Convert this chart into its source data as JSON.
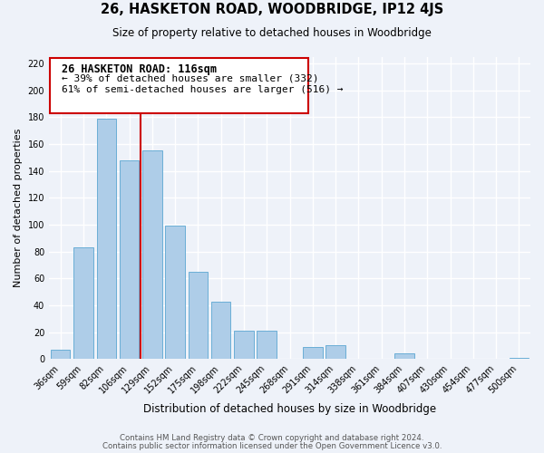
{
  "title": "26, HASKETON ROAD, WOODBRIDGE, IP12 4JS",
  "subtitle": "Size of property relative to detached houses in Woodbridge",
  "xlabel": "Distribution of detached houses by size in Woodbridge",
  "ylabel": "Number of detached properties",
  "bar_labels": [
    "36sqm",
    "59sqm",
    "82sqm",
    "106sqm",
    "129sqm",
    "152sqm",
    "175sqm",
    "198sqm",
    "222sqm",
    "245sqm",
    "268sqm",
    "291sqm",
    "314sqm",
    "338sqm",
    "361sqm",
    "384sqm",
    "407sqm",
    "430sqm",
    "454sqm",
    "477sqm",
    "500sqm"
  ],
  "bar_values": [
    7,
    83,
    179,
    148,
    155,
    99,
    65,
    43,
    21,
    21,
    0,
    9,
    10,
    0,
    0,
    4,
    0,
    0,
    0,
    0,
    1
  ],
  "bar_color": "#aecde8",
  "bar_edge_color": "#6aaed6",
  "vline_x": 3.5,
  "vline_color": "#cc0000",
  "annotation_title": "26 HASKETON ROAD: 116sqm",
  "annotation_line1": "← 39% of detached houses are smaller (332)",
  "annotation_line2": "61% of semi-detached houses are larger (516) →",
  "box_color": "#ffffff",
  "box_edge_color": "#cc0000",
  "ylim": [
    0,
    225
  ],
  "yticks": [
    0,
    20,
    40,
    60,
    80,
    100,
    120,
    140,
    160,
    180,
    200,
    220
  ],
  "footer1": "Contains HM Land Registry data © Crown copyright and database right 2024.",
  "footer2": "Contains public sector information licensed under the Open Government Licence v3.0.",
  "bg_color": "#eef2f9"
}
